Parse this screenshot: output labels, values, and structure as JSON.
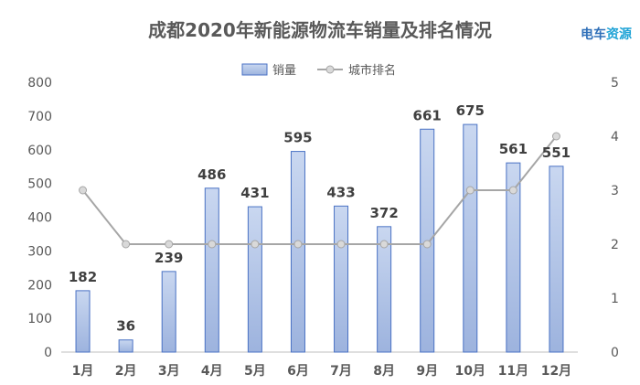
{
  "watermark": {
    "text_a": "电车",
    "text_b": "资源"
  },
  "colors": {
    "bar_fill_top": "#c9d7f0",
    "bar_fill_bottom": "#9db3de",
    "bar_stroke": "#4a72c4",
    "line": "#a6a6a6",
    "marker_fill": "#d9d9d9",
    "axis": "#bfbfbf",
    "title": "#595959",
    "watermark_a": "#2f6fb8",
    "watermark_b": "#1fa3d6"
  },
  "chart_data": {
    "type": "bar",
    "title": "成都2020年新能源物流车销量及排名情况",
    "categories": [
      "1月",
      "2月",
      "3月",
      "4月",
      "5月",
      "6月",
      "7月",
      "8月",
      "9月",
      "10月",
      "11月",
      "12月"
    ],
    "series": [
      {
        "name": "销量",
        "type": "bar",
        "axis": "left",
        "values": [
          182,
          36,
          239,
          486,
          431,
          595,
          433,
          372,
          661,
          675,
          561,
          551
        ]
      },
      {
        "name": "城市排名",
        "type": "line",
        "axis": "right",
        "values": [
          3,
          2,
          2,
          2,
          2,
          2,
          2,
          2,
          2,
          3,
          3,
          4
        ]
      }
    ],
    "y_left": {
      "min": 0,
      "max": 800,
      "step": 100,
      "ticks": [
        "0",
        "100",
        "200",
        "300",
        "400",
        "500",
        "600",
        "700",
        "800"
      ]
    },
    "y_right": {
      "min": 0,
      "max": 5,
      "step": 1,
      "ticks": [
        "0",
        "1",
        "2",
        "3",
        "4",
        "5"
      ]
    },
    "legend_position": "top-center",
    "grid": false,
    "data_labels": true
  }
}
